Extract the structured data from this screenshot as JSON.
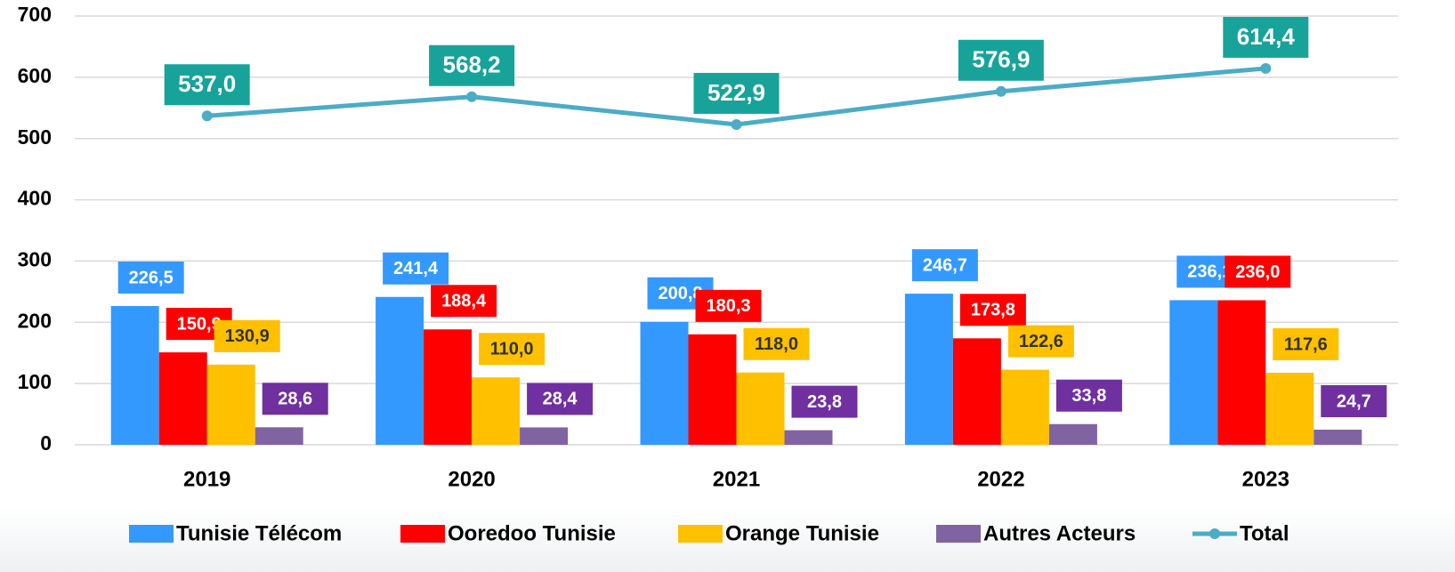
{
  "chart_data": {
    "type": "bar",
    "categories": [
      "2019",
      "2020",
      "2021",
      "2022",
      "2023"
    ],
    "series": [
      {
        "name": "Tunisie Télécom",
        "color": "#3399ff",
        "values": [
          226.5,
          241.4,
          200.8,
          246.7,
          236.1
        ],
        "value_labels": [
          "226,5",
          "241,4",
          "200,8",
          "246,7",
          "236,1"
        ]
      },
      {
        "name": "Ooredoo Tunisie",
        "color": "#ff0000",
        "values": [
          150.9,
          188.4,
          180.3,
          173.8,
          236.0
        ],
        "value_labels": [
          "150,9",
          "188,4",
          "180,3",
          "173,8",
          "236,0"
        ]
      },
      {
        "name": "Orange Tunisie",
        "color": "#ffc000",
        "values": [
          130.9,
          110.0,
          118.0,
          122.6,
          117.6
        ],
        "value_labels": [
          "130,9",
          "110,0",
          "118,0",
          "122,6",
          "117,6"
        ]
      },
      {
        "name": "Autres Acteurs",
        "color": "#8064a2",
        "values": [
          28.6,
          28.4,
          23.8,
          33.8,
          24.7
        ],
        "value_labels": [
          "28,6",
          "28,4",
          "23,8",
          "33,8",
          "24,7"
        ]
      },
      {
        "name": "Total",
        "type": "line",
        "color": "#4bacc6",
        "values": [
          537.0,
          568.2,
          522.9,
          576.9,
          614.4
        ],
        "value_labels": [
          "537,0",
          "568,2",
          "522,9",
          "576,9",
          "614,4"
        ]
      }
    ],
    "ylim": [
      0,
      700
    ],
    "yticks": [
      0,
      100,
      200,
      300,
      400,
      500,
      600,
      700
    ],
    "grid": true,
    "legend": "bottom"
  }
}
